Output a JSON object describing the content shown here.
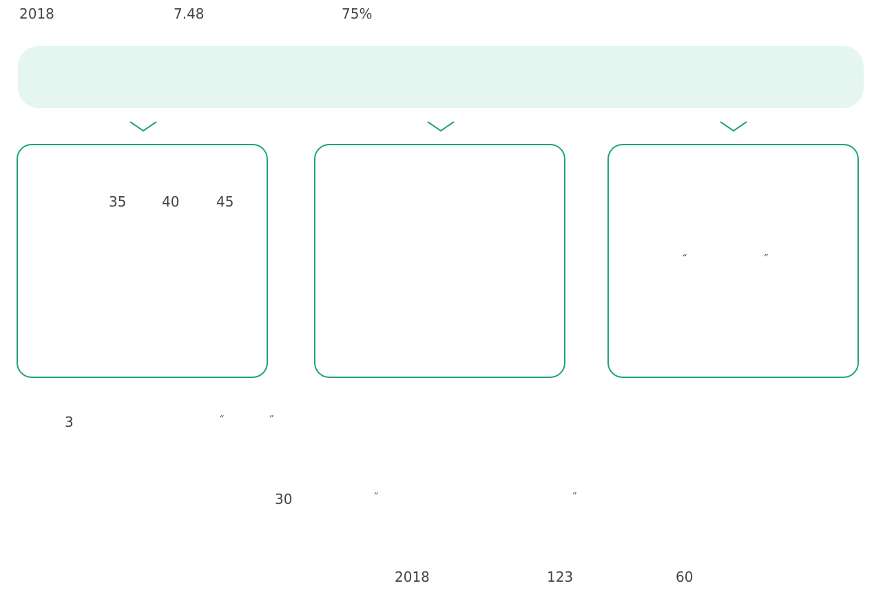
{
  "header": {
    "year": "2018",
    "value": "7.48",
    "percent": "75%"
  },
  "colors": {
    "accent": "#1fa56b",
    "banner_bg": "#e5f5ef",
    "text": "#444444"
  },
  "arrows": {
    "icon": "chevron-down-icon"
  },
  "cards": {
    "left": {
      "num1": "35",
      "num2": "40",
      "num3": "45"
    },
    "right": {
      "open_quote": "“",
      "close_quote": "”"
    }
  },
  "body": {
    "line1": {
      "num": "3",
      "open_quote": "“",
      "close_quote": "”"
    },
    "line2": {
      "num": "30",
      "open_quote": "“",
      "close_quote": "”"
    },
    "line3": {
      "year": "2018",
      "num1": "123",
      "num2": "60"
    }
  }
}
